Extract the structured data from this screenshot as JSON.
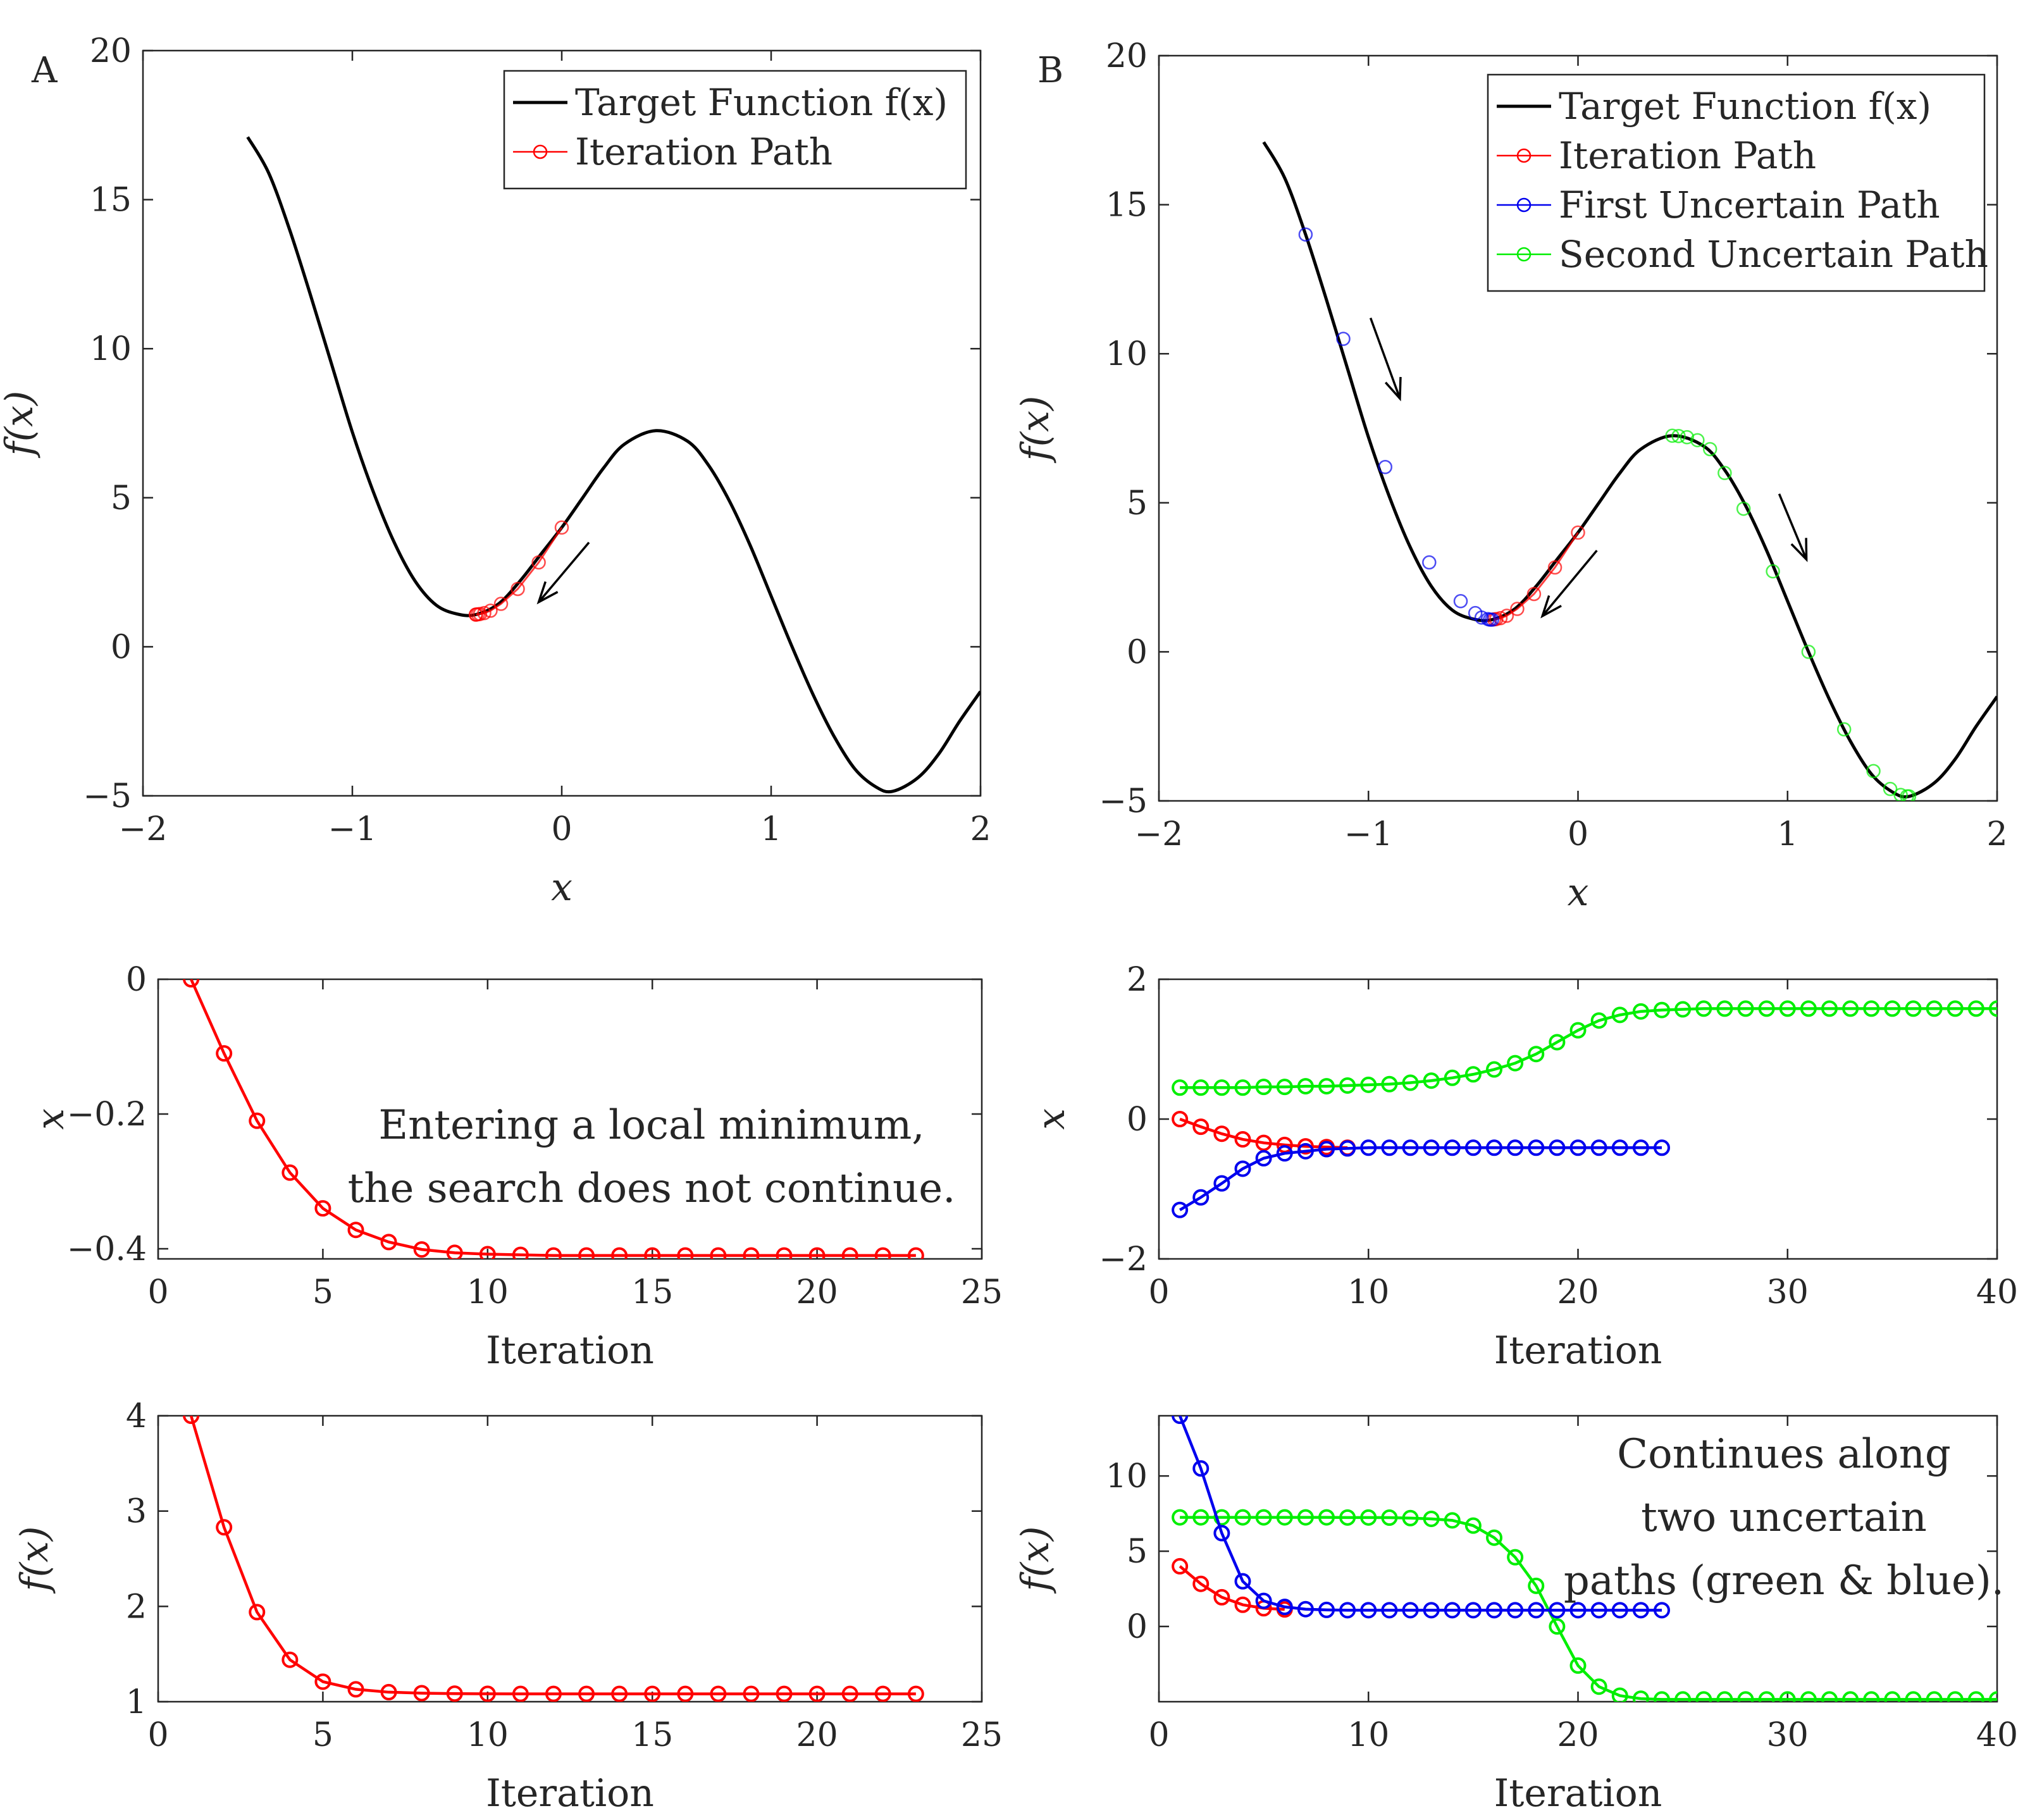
{
  "figure": {
    "panel_labels": [
      "A",
      "B"
    ],
    "colors": {
      "target": "#000000",
      "iteration": "#ff0000",
      "first_uncertain": "#0000ee",
      "second_uncertain": "#00ee00",
      "axis": "#262626"
    }
  },
  "chart_data": [
    {
      "id": "A_top",
      "type": "line",
      "panel_label": "A",
      "xlabel": "x",
      "ylabel": "f(x)",
      "xlim": [
        -2,
        2
      ],
      "ylim": [
        -5,
        20
      ],
      "xticks": [
        -2,
        -1,
        0,
        1,
        2
      ],
      "yticks": [
        -5,
        0,
        5,
        10,
        15,
        20
      ],
      "xtick_labels": [
        "−2",
        "−1",
        "0",
        "1",
        "2"
      ],
      "ytick_labels": [
        "−5",
        "0",
        "5",
        "10",
        "15",
        "20"
      ],
      "legend": {
        "position": "top-right",
        "entries": [
          "Target Function f(x)",
          "Iteration Path"
        ]
      },
      "target_function": {
        "name": "Target Function f(x)",
        "x": [
          -1.5,
          -1.4,
          -1.3,
          -1.2,
          -1.1,
          -1.0,
          -0.9,
          -0.8,
          -0.7,
          -0.6,
          -0.5,
          -0.41,
          -0.3,
          -0.2,
          -0.1,
          0.0,
          0.1,
          0.2,
          0.3,
          0.45,
          0.6,
          0.7,
          0.8,
          0.9,
          1.0,
          1.1,
          1.2,
          1.3,
          1.4,
          1.5,
          1.58,
          1.7,
          1.8,
          1.9,
          2.0
        ],
        "y": [
          17.1,
          15.9,
          14.0,
          11.8,
          9.5,
          7.2,
          5.2,
          3.5,
          2.2,
          1.4,
          1.1,
          1.08,
          1.45,
          2.2,
          3.1,
          4.0,
          5.0,
          6.0,
          6.8,
          7.25,
          6.9,
          6.1,
          4.9,
          3.4,
          1.7,
          0.0,
          -1.6,
          -3.0,
          -4.1,
          -4.7,
          -4.85,
          -4.4,
          -3.6,
          -2.5,
          -1.5
        ]
      },
      "series": [
        {
          "name": "Iteration Path",
          "x": [
            0.0,
            -0.11,
            -0.21,
            -0.29,
            -0.34,
            -0.37,
            -0.39,
            -0.4,
            -0.41,
            -0.41
          ],
          "y": [
            4.0,
            2.83,
            1.94,
            1.44,
            1.21,
            1.13,
            1.1,
            1.09,
            1.08,
            1.08
          ]
        }
      ],
      "arrows": [
        {
          "from": [
            0.13,
            3.5
          ],
          "to": [
            -0.11,
            1.5
          ]
        }
      ]
    },
    {
      "id": "B_top",
      "type": "line",
      "panel_label": "B",
      "xlabel": "x",
      "ylabel": "f(x)",
      "xlim": [
        -2,
        2
      ],
      "ylim": [
        -5,
        20
      ],
      "xticks": [
        -2,
        -1,
        0,
        1,
        2
      ],
      "yticks": [
        -5,
        0,
        5,
        10,
        15,
        20
      ],
      "xtick_labels": [
        "−2",
        "−1",
        "0",
        "1",
        "2"
      ],
      "ytick_labels": [
        "−5",
        "0",
        "5",
        "10",
        "15",
        "20"
      ],
      "legend": {
        "position": "top-right",
        "entries": [
          "Target Function f(x)",
          "Iteration Path",
          "First Uncertain Path",
          "Second Uncertain Path"
        ]
      },
      "target_function": {
        "name": "Target Function f(x)",
        "x": [
          -1.5,
          -1.4,
          -1.3,
          -1.2,
          -1.1,
          -1.0,
          -0.9,
          -0.8,
          -0.7,
          -0.6,
          -0.5,
          -0.41,
          -0.3,
          -0.2,
          -0.1,
          0.0,
          0.1,
          0.2,
          0.3,
          0.45,
          0.6,
          0.7,
          0.8,
          0.9,
          1.0,
          1.1,
          1.2,
          1.3,
          1.4,
          1.5,
          1.58,
          1.7,
          1.8,
          1.9,
          2.0
        ],
        "y": [
          17.1,
          15.9,
          14.0,
          11.8,
          9.5,
          7.2,
          5.2,
          3.5,
          2.2,
          1.4,
          1.1,
          1.08,
          1.45,
          2.2,
          3.1,
          4.0,
          5.0,
          6.0,
          6.8,
          7.25,
          6.9,
          6.1,
          4.9,
          3.4,
          1.7,
          0.0,
          -1.6,
          -3.0,
          -4.1,
          -4.7,
          -4.85,
          -4.4,
          -3.6,
          -2.5,
          -1.5
        ]
      },
      "series": [
        {
          "name": "Iteration Path",
          "x": [
            0.0,
            -0.11,
            -0.21,
            -0.29,
            -0.34,
            -0.37,
            -0.39,
            -0.4
          ],
          "y": [
            4.0,
            2.83,
            1.94,
            1.44,
            1.21,
            1.13,
            1.1,
            1.09
          ]
        },
        {
          "name": "First Uncertain Path",
          "x": [
            -1.3,
            -1.12,
            -0.92,
            -0.71,
            -0.56,
            -0.49,
            -0.46,
            -0.43,
            -0.42,
            -0.41
          ],
          "y": [
            14.0,
            10.5,
            6.2,
            3.0,
            1.7,
            1.3,
            1.15,
            1.1,
            1.08,
            1.08
          ],
          "marker_only": true
        },
        {
          "name": "Second Uncertain Path",
          "x": [
            0.45,
            0.48,
            0.52,
            0.57,
            0.63,
            0.7,
            0.79,
            0.93,
            1.1,
            1.27,
            1.41,
            1.49,
            1.54,
            1.57,
            1.58
          ],
          "y": [
            7.25,
            7.24,
            7.2,
            7.1,
            6.8,
            6.0,
            4.8,
            2.7,
            0.0,
            -2.6,
            -4.0,
            -4.6,
            -4.8,
            -4.85,
            -4.85
          ],
          "marker_only": true
        }
      ],
      "arrows": [
        {
          "from": [
            -0.99,
            11.2
          ],
          "to": [
            -0.85,
            8.5
          ]
        },
        {
          "from": [
            0.09,
            3.4
          ],
          "to": [
            -0.17,
            1.2
          ]
        },
        {
          "from": [
            0.96,
            5.3
          ],
          "to": [
            1.09,
            3.1
          ]
        }
      ]
    },
    {
      "id": "A_mid",
      "type": "line",
      "xlabel": "Iteration",
      "ylabel": "x",
      "xlim": [
        0,
        25
      ],
      "ylim": [
        -0.415,
        0
      ],
      "xticks": [
        0,
        5,
        10,
        15,
        20,
        25
      ],
      "yticks": [
        0,
        -0.2,
        -0.4
      ],
      "xtick_labels": [
        "0",
        "5",
        "10",
        "15",
        "20",
        "25"
      ],
      "ytick_labels": [
        "0",
        "−0.2",
        "−0.4"
      ],
      "annotation": [
        "Entering a local minimum,",
        "the search does not continue."
      ],
      "series": [
        {
          "name": "Iteration Path",
          "x": [
            1,
            2,
            3,
            4,
            5,
            6,
            7,
            8,
            9,
            10,
            11,
            12,
            13,
            14,
            15,
            16,
            17,
            18,
            19,
            20,
            21,
            22,
            23
          ],
          "y": [
            0,
            -0.11,
            -0.21,
            -0.287,
            -0.34,
            -0.372,
            -0.39,
            -0.401,
            -0.406,
            -0.408,
            -0.409,
            -0.41,
            -0.41,
            -0.41,
            -0.41,
            -0.41,
            -0.41,
            -0.41,
            -0.41,
            -0.41,
            -0.41,
            -0.41,
            -0.41
          ]
        }
      ]
    },
    {
      "id": "B_mid",
      "type": "line",
      "xlabel": "Iteration",
      "ylabel": "x",
      "xlim": [
        0,
        40
      ],
      "ylim": [
        -2,
        2
      ],
      "xticks": [
        0,
        10,
        20,
        30,
        40
      ],
      "yticks": [
        -2,
        0,
        2
      ],
      "xtick_labels": [
        "0",
        "10",
        "20",
        "30",
        "40"
      ],
      "ytick_labels": [
        "−2",
        "0",
        "2"
      ],
      "series": [
        {
          "name": "Second Uncertain Path",
          "x": [
            1,
            2,
            3,
            4,
            5,
            6,
            7,
            8,
            9,
            10,
            11,
            12,
            13,
            14,
            15,
            16,
            17,
            18,
            19,
            20,
            21,
            22,
            23,
            24,
            25,
            26,
            27,
            28,
            29,
            30,
            31,
            32,
            33,
            34,
            35,
            36,
            37,
            38,
            39,
            40
          ],
          "y": [
            0.45,
            0.45,
            0.45,
            0.45,
            0.46,
            0.46,
            0.47,
            0.47,
            0.48,
            0.49,
            0.5,
            0.52,
            0.55,
            0.59,
            0.64,
            0.71,
            0.8,
            0.93,
            1.1,
            1.27,
            1.41,
            1.49,
            1.54,
            1.56,
            1.57,
            1.58,
            1.58,
            1.58,
            1.58,
            1.58,
            1.58,
            1.58,
            1.58,
            1.58,
            1.58,
            1.58,
            1.58,
            1.58,
            1.58,
            1.58
          ]
        },
        {
          "name": "Iteration Path",
          "x": [
            1,
            2,
            3,
            4,
            5,
            6,
            7,
            8,
            9
          ],
          "y": [
            0,
            -0.11,
            -0.21,
            -0.29,
            -0.34,
            -0.37,
            -0.39,
            -0.4,
            -0.41
          ]
        },
        {
          "name": "First Uncertain Path",
          "x": [
            1,
            2,
            3,
            4,
            5,
            6,
            7,
            8,
            9,
            10,
            11,
            12,
            13,
            14,
            15,
            16,
            17,
            18,
            19,
            20,
            21,
            22,
            23,
            24
          ],
          "y": [
            -1.3,
            -1.12,
            -0.92,
            -0.71,
            -0.56,
            -0.49,
            -0.46,
            -0.43,
            -0.42,
            -0.41,
            -0.41,
            -0.41,
            -0.41,
            -0.41,
            -0.41,
            -0.41,
            -0.41,
            -0.41,
            -0.41,
            -0.41,
            -0.41,
            -0.41,
            -0.41,
            -0.41
          ]
        }
      ]
    },
    {
      "id": "A_bot",
      "type": "line",
      "xlabel": "Iteration",
      "ylabel": "f(x)",
      "xlim": [
        0,
        25
      ],
      "ylim": [
        1,
        4
      ],
      "xticks": [
        0,
        5,
        10,
        15,
        20,
        25
      ],
      "yticks": [
        1,
        2,
        3,
        4
      ],
      "xtick_labels": [
        "0",
        "5",
        "10",
        "15",
        "20",
        "25"
      ],
      "ytick_labels": [
        "1",
        "2",
        "3",
        "4"
      ],
      "series": [
        {
          "name": "Iteration Path",
          "x": [
            1,
            2,
            3,
            4,
            5,
            6,
            7,
            8,
            9,
            10,
            11,
            12,
            13,
            14,
            15,
            16,
            17,
            18,
            19,
            20,
            21,
            22,
            23
          ],
          "y": [
            4.0,
            2.83,
            1.94,
            1.44,
            1.21,
            1.13,
            1.1,
            1.09,
            1.085,
            1.083,
            1.082,
            1.082,
            1.082,
            1.082,
            1.082,
            1.082,
            1.082,
            1.082,
            1.082,
            1.082,
            1.082,
            1.082,
            1.082
          ]
        }
      ]
    },
    {
      "id": "B_bot",
      "type": "line",
      "xlabel": "Iteration",
      "ylabel": "f(x)",
      "xlim": [
        0,
        40
      ],
      "ylim": [
        -5,
        14
      ],
      "xticks": [
        0,
        10,
        20,
        30,
        40
      ],
      "yticks": [
        0,
        5,
        10
      ],
      "xtick_labels": [
        "0",
        "10",
        "20",
        "30",
        "40"
      ],
      "ytick_labels": [
        "0",
        "5",
        "10"
      ],
      "annotation": [
        "Continues along",
        "two uncertain",
        "paths (green & blue)."
      ],
      "series": [
        {
          "name": "Second Uncertain Path",
          "x": [
            1,
            2,
            3,
            4,
            5,
            6,
            7,
            8,
            9,
            10,
            11,
            12,
            13,
            14,
            15,
            16,
            17,
            18,
            19,
            20,
            21,
            22,
            23,
            24,
            25,
            26,
            27,
            28,
            29,
            30,
            31,
            32,
            33,
            34,
            35,
            36,
            37,
            38,
            39,
            40
          ],
          "y": [
            7.25,
            7.25,
            7.25,
            7.25,
            7.25,
            7.25,
            7.25,
            7.25,
            7.24,
            7.24,
            7.23,
            7.2,
            7.15,
            7.05,
            6.7,
            5.9,
            4.6,
            2.7,
            0.0,
            -2.6,
            -4.0,
            -4.6,
            -4.8,
            -4.85,
            -4.85,
            -4.85,
            -4.85,
            -4.85,
            -4.85,
            -4.85,
            -4.85,
            -4.85,
            -4.85,
            -4.85,
            -4.85,
            -4.85,
            -4.85,
            -4.85,
            -4.85,
            -4.85
          ]
        },
        {
          "name": "Iteration Path",
          "x": [
            1,
            2,
            3,
            4,
            5,
            6
          ],
          "y": [
            4.0,
            2.83,
            1.94,
            1.44,
            1.21,
            1.13
          ]
        },
        {
          "name": "First Uncertain Path",
          "x": [
            1,
            2,
            3,
            4,
            5,
            6,
            7,
            8,
            9,
            10,
            11,
            12,
            13,
            14,
            15,
            16,
            17,
            18,
            19,
            20,
            21,
            22,
            23,
            24
          ],
          "y": [
            14.0,
            10.5,
            6.2,
            3.0,
            1.7,
            1.3,
            1.15,
            1.1,
            1.08,
            1.08,
            1.08,
            1.08,
            1.08,
            1.08,
            1.08,
            1.08,
            1.08,
            1.08,
            1.08,
            1.08,
            1.08,
            1.08,
            1.08,
            1.08
          ]
        }
      ]
    }
  ]
}
